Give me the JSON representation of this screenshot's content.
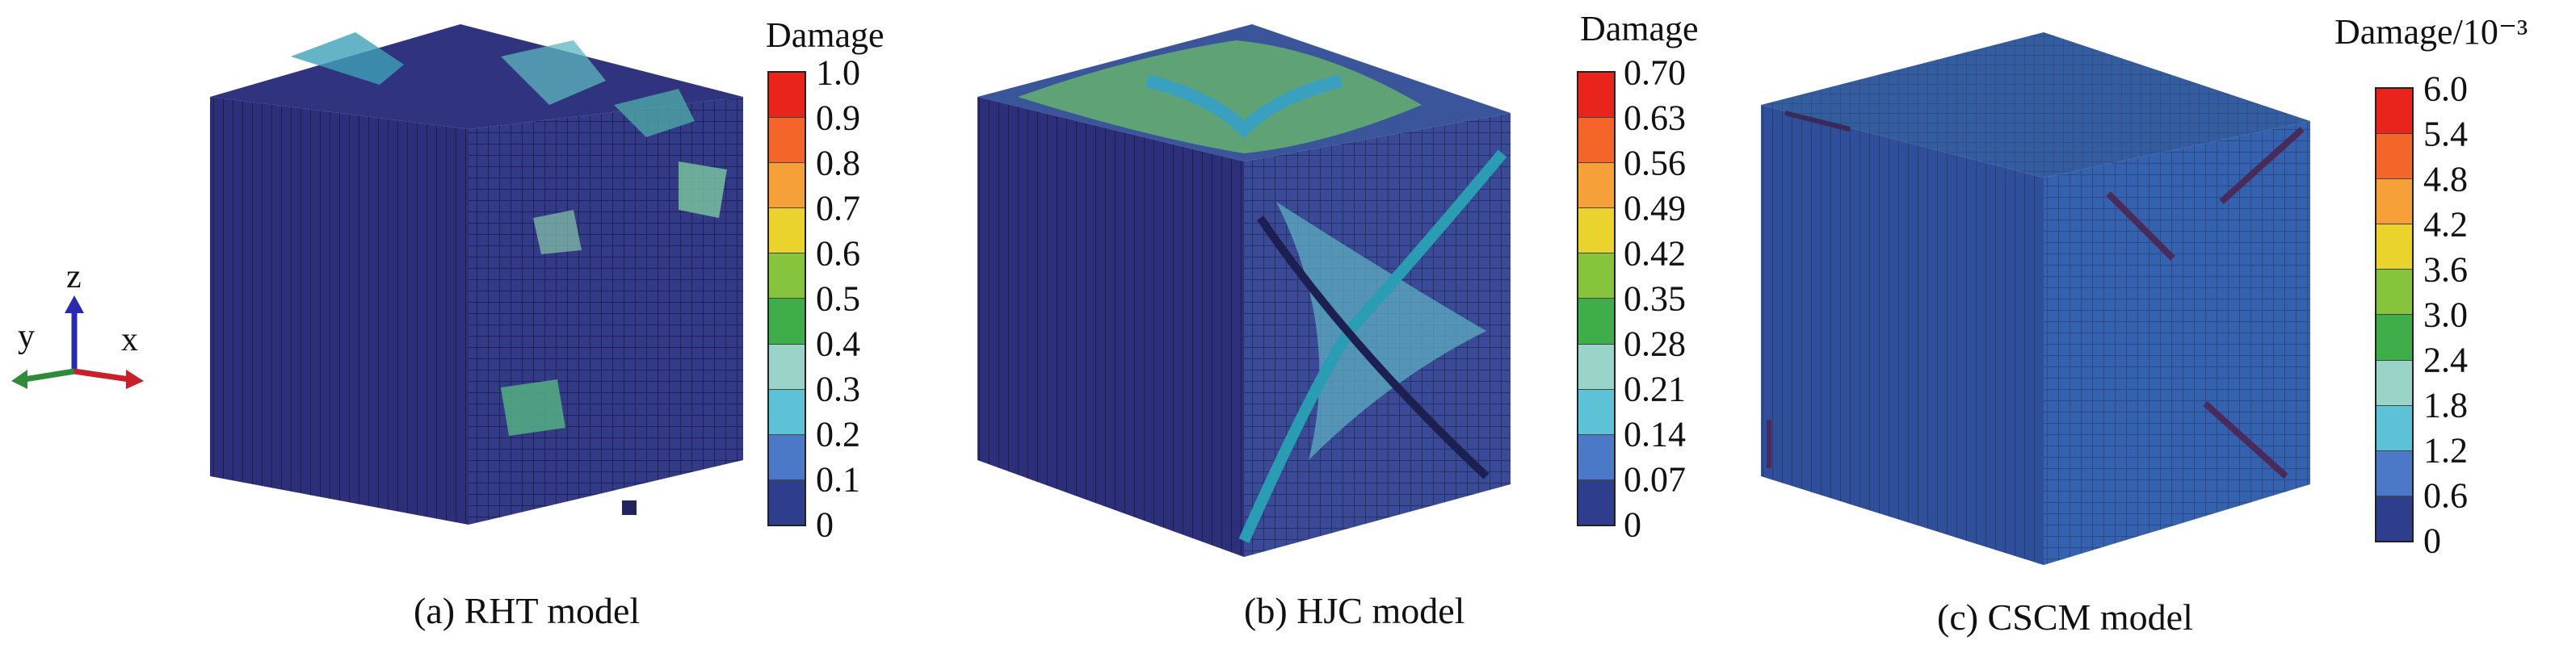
{
  "triad": {
    "z": "z",
    "y": "y",
    "x": "x"
  },
  "panels": [
    {
      "legend_title": "Damage",
      "ticks": [
        "1.0",
        "0.9",
        "0.8",
        "0.7",
        "0.6",
        "0.5",
        "0.4",
        "0.3",
        "0.2",
        "0.1",
        "0"
      ],
      "caption": "(a) RHT model"
    },
    {
      "legend_title": "Damage",
      "ticks": [
        "0.70",
        "0.63",
        "0.56",
        "0.49",
        "0.42",
        "0.35",
        "0.28",
        "0.21",
        "0.14",
        "0.07",
        "0"
      ],
      "caption": "(b) HJC model"
    },
    {
      "legend_title": "Damage/10⁻³",
      "ticks": [
        "6.0",
        "5.4",
        "4.8",
        "4.2",
        "3.6",
        "3.0",
        "2.4",
        "1.8",
        "1.2",
        "0.6",
        "0"
      ],
      "caption": "(c) CSCM model"
    }
  ],
  "colors": {
    "scale": [
      "#e8241c",
      "#f4652a",
      "#f6a03a",
      "#e9d32c",
      "#86c43e",
      "#3fae4a",
      "#55b46c",
      "#9ad4c8",
      "#5ec2d6",
      "#4c78c8",
      "#2f3e8c"
    ],
    "cube_base": "#2d2f7a",
    "cube_c_base": "#2f4f9a"
  }
}
